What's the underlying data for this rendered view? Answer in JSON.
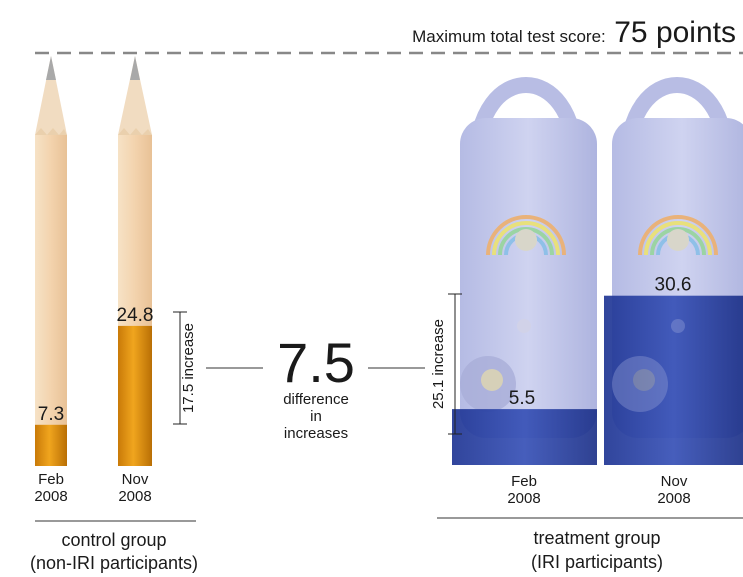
{
  "chart_data": {
    "type": "bar",
    "title": "",
    "max_label_prefix": "Maximum total test score:",
    "max_label_value": "75 points",
    "max_score": 75,
    "groups": [
      {
        "key": "control",
        "label_line1": "control group",
        "label_line2": "(non-IRI participants)",
        "icon": "pencil-icon",
        "categories": [
          {
            "line1": "Feb",
            "line2": "2008",
            "value": 7.3,
            "label": "7.3"
          },
          {
            "line1": "Nov",
            "line2": "2008",
            "value": 24.8,
            "label": "24.8"
          }
        ],
        "increase_label": "17.5 increase",
        "increase": 17.5
      },
      {
        "key": "treatment",
        "label_line1": "treatment group",
        "label_line2": "(IRI participants)",
        "icon": "radio-icon",
        "categories": [
          {
            "line1": "Feb",
            "line2": "2008",
            "value": 5.5,
            "label": "5.5"
          },
          {
            "line1": "Nov",
            "line2": "2008",
            "value": 30.6,
            "label": "30.6"
          }
        ],
        "increase_label": "25.1 increase",
        "increase": 25.1
      }
    ],
    "difference": {
      "value_label": "7.5",
      "text_line1": "difference",
      "text_line2": "in",
      "text_line3": "increases"
    },
    "colors": {
      "pencil_wood": "#f4d9b8",
      "pencil_fill": "#d68a12",
      "radio_body": "#c3c8ea",
      "radio_fill": "#2c44a8",
      "dashed_line": "#888888"
    }
  }
}
